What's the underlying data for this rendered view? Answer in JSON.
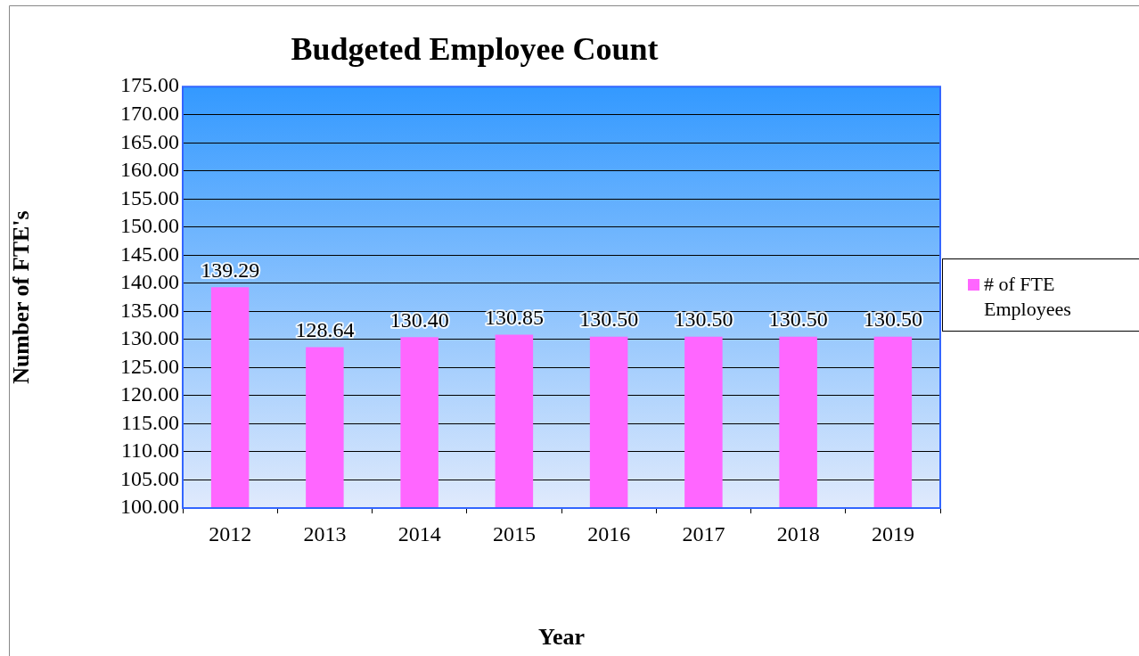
{
  "chart_data": {
    "type": "bar",
    "title": "Budgeted Employee Count",
    "xlabel": "Year",
    "ylabel": "Number of FTE's",
    "categories": [
      "2012",
      "2013",
      "2014",
      "2015",
      "2016",
      "2017",
      "2018",
      "2019"
    ],
    "series": [
      {
        "name": "# of FTE Employees",
        "color": "#ff66ff",
        "values": [
          139.29,
          128.64,
          130.4,
          130.85,
          130.5,
          130.5,
          130.5,
          130.5
        ],
        "value_labels": [
          "139.29",
          "128.64",
          "130.40",
          "130.85",
          "130.50",
          "130.50",
          "130.50",
          "130.50"
        ]
      }
    ],
    "ylim": [
      100,
      175
    ],
    "yticks": [
      {
        "value": 100,
        "label": "100.00"
      },
      {
        "value": 105,
        "label": "105.00"
      },
      {
        "value": 110,
        "label": "110.00"
      },
      {
        "value": 115,
        "label": "115.00"
      },
      {
        "value": 120,
        "label": "120.00"
      },
      {
        "value": 125,
        "label": "125.00"
      },
      {
        "value": 130,
        "label": "130.00"
      },
      {
        "value": 135,
        "label": "135.00"
      },
      {
        "value": 140,
        "label": "140.00"
      },
      {
        "value": 145,
        "label": "145.00"
      },
      {
        "value": 150,
        "label": "150.00"
      },
      {
        "value": 155,
        "label": "155.00"
      },
      {
        "value": 160,
        "label": "160.00"
      },
      {
        "value": 165,
        "label": "165.00"
      },
      {
        "value": 170,
        "label": "170.00"
      },
      {
        "value": 175,
        "label": "175.00"
      }
    ],
    "grid": "y",
    "legend": "right"
  }
}
